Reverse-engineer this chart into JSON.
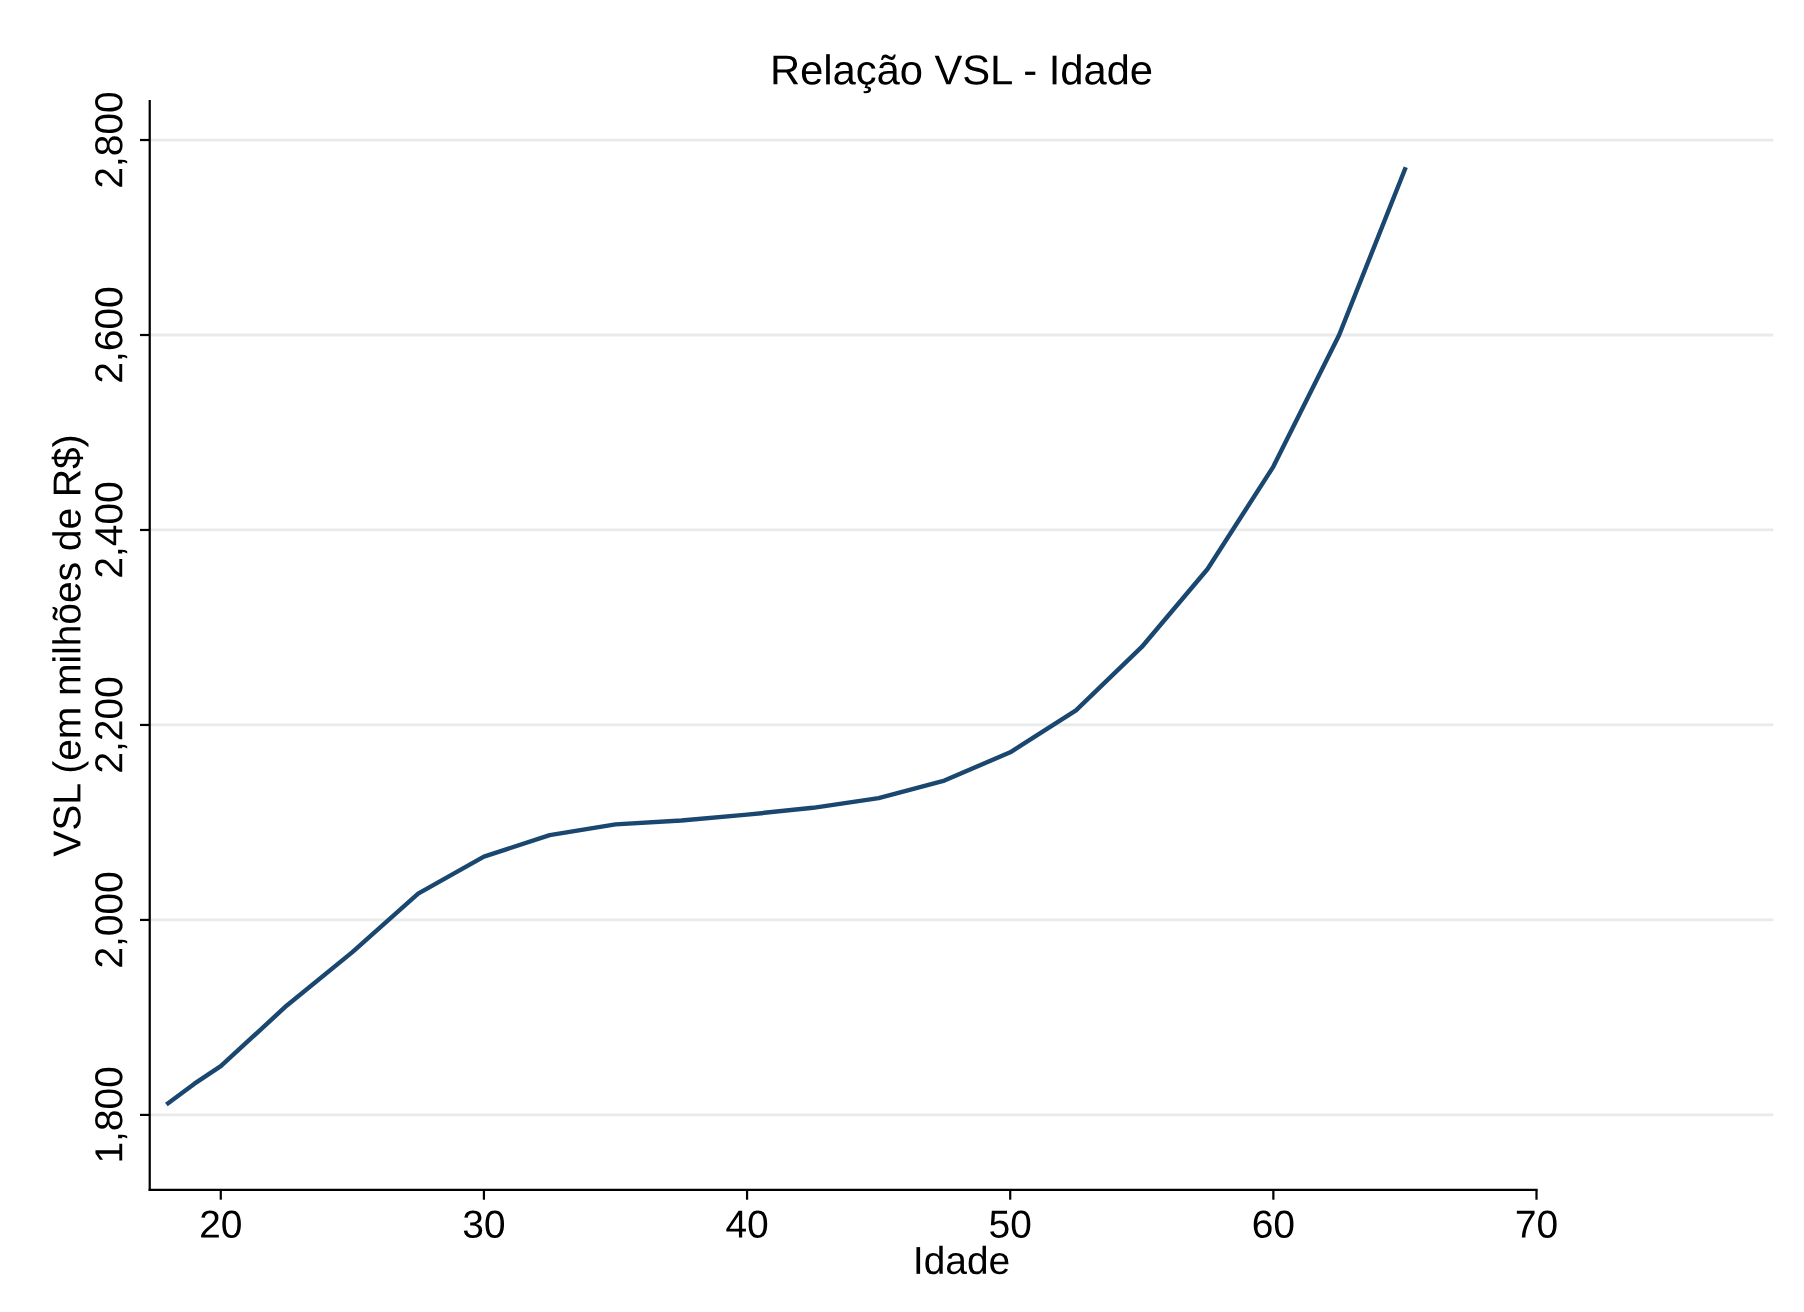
{
  "chart_data": {
    "type": "line",
    "title": "Relação VSL - Idade",
    "xlabel": "Idade",
    "ylabel": "VSL (em milhões de R$)",
    "x": [
      18,
      19,
      20,
      22.5,
      25,
      27.5,
      30,
      32.5,
      35,
      37.5,
      40,
      42.5,
      45,
      47.5,
      50,
      52.5,
      55,
      57.5,
      60,
      62.5,
      65
    ],
    "series": [
      {
        "color": "#1a476f",
        "values": [
          1812,
          1832,
          1850,
          1912,
          1967,
          2027,
          2065,
          2087,
          2098,
          2102,
          2108,
          2115,
          2125,
          2143,
          2172,
          2215,
          2280,
          2360,
          2465,
          2600,
          2770
        ]
      }
    ],
    "xlim": [
      17.3,
      79
    ],
    "xticks": [
      20,
      30,
      40,
      50,
      60,
      70
    ],
    "ylim": [
      1723,
      2840
    ],
    "yticks": [
      {
        "value": 1800,
        "label": "1,800"
      },
      {
        "value": 2000,
        "label": "2,000"
      },
      {
        "value": 2200,
        "label": "2,200"
      },
      {
        "value": 2400,
        "label": "2,400"
      },
      {
        "value": 2600,
        "label": "2,600"
      },
      {
        "value": 2800,
        "label": "2,800"
      }
    ],
    "grid": "y",
    "marker": "none",
    "line_style": "solid"
  }
}
